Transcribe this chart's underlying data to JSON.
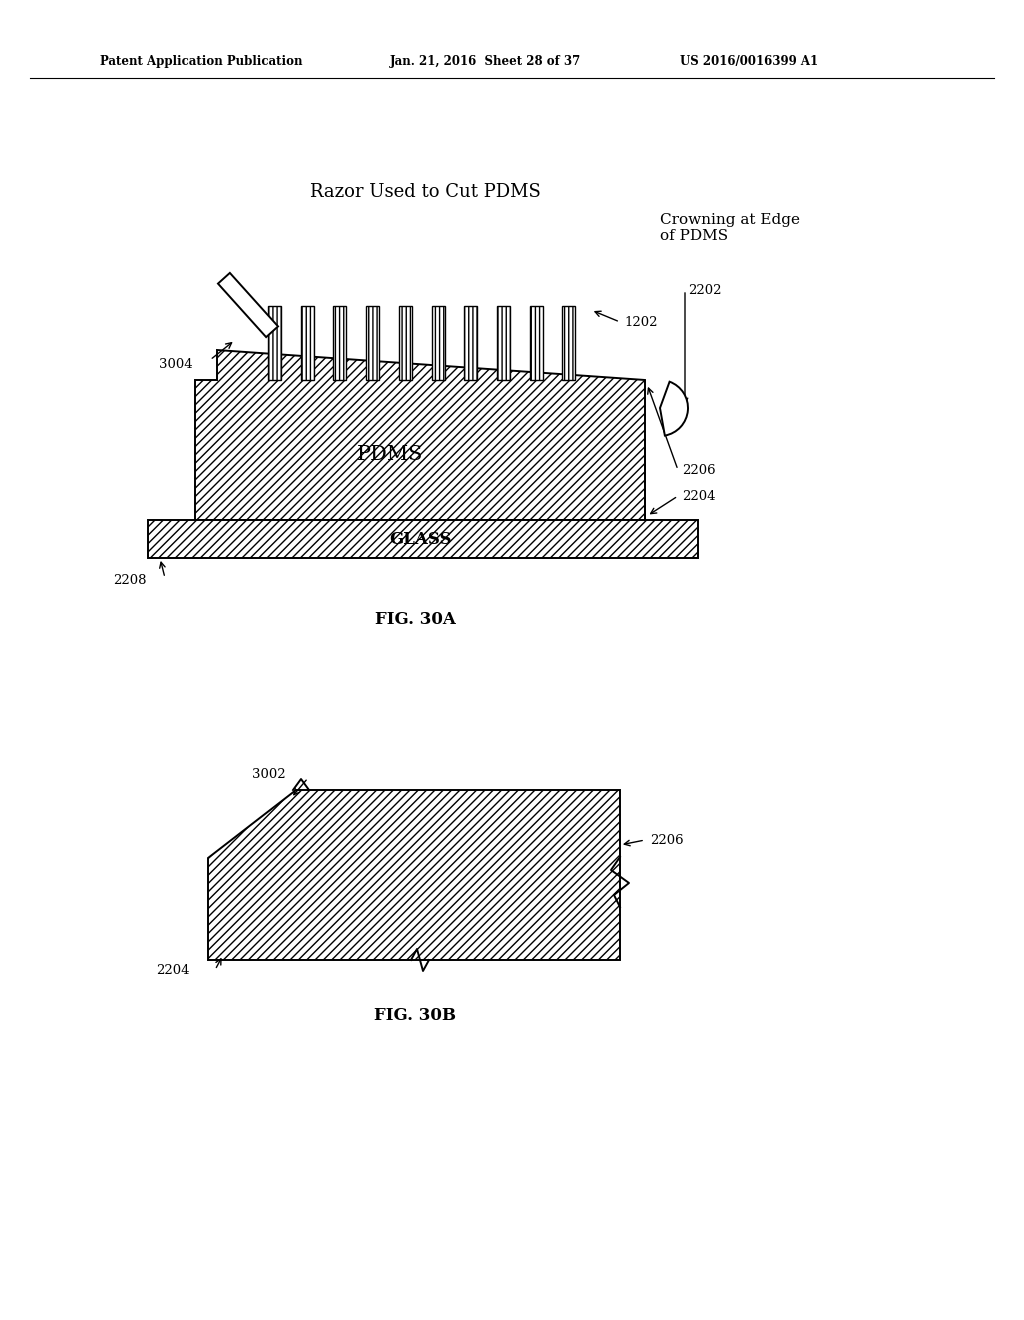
{
  "bg_color": "#ffffff",
  "header_left": "Patent Application Publication",
  "header_mid": "Jan. 21, 2016  Sheet 28 of 37",
  "header_right": "US 2016/0016399 A1",
  "fig30a_label": "FIG. 30A",
  "fig30b_label": "FIG. 30B",
  "label_razor": "Razor Used to Cut PDMS",
  "label_crowning": "Crowning at Edge\nof PDMS",
  "label_pdms": "PDMS",
  "label_glass": "GLASS",
  "ref_3004": "3004",
  "ref_1202": "1202",
  "ref_2202": "2202",
  "ref_2206_a": "2206",
  "ref_2204_a": "2204",
  "ref_2208": "2208",
  "ref_3002": "3002",
  "ref_2206_b": "2206",
  "ref_2204_b": "2204"
}
